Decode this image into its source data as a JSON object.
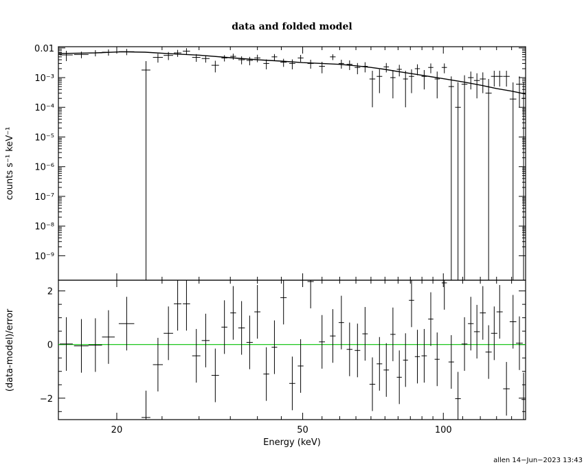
{
  "chart_data": [
    {
      "type": "scatter",
      "title": "data and folded model",
      "ylabel": "counts s⁻¹ keV⁻¹",
      "y_scale": "log",
      "xlim": [
        15,
        150
      ],
      "x_scale": "log",
      "ylim": [
        1.5e-10,
        0.011
      ],
      "y_ticks": [
        "0.01",
        "10⁻³",
        "10⁻⁴",
        "10⁻⁵",
        "10⁻⁶",
        "10⁻⁷",
        "10⁻⁸",
        "10⁻⁹"
      ],
      "y_tick_values": [
        0.01,
        0.001,
        0.0001,
        1e-05,
        1e-06,
        1e-07,
        1e-08,
        1e-09
      ],
      "series": [
        {
          "kind": "data",
          "points": [
            [
              15.6,
              0.0058,
              0.5,
              0.0022
            ],
            [
              16.8,
              0.006,
              0.6,
              0.0015
            ],
            [
              18.0,
              0.0068,
              0.6,
              0.0016
            ],
            [
              19.2,
              0.0072,
              0.6,
              0.0017
            ],
            [
              21.0,
              0.0075,
              0.8,
              0.0018
            ],
            [
              23.1,
              0.0018,
              0.5,
              0.0018
            ],
            [
              24.5,
              0.0048,
              0.6,
              0.0016
            ],
            [
              25.8,
              0.0056,
              0.6,
              0.0017
            ],
            [
              27.0,
              0.0068,
              0.5,
              0.0018
            ],
            [
              28.2,
              0.0078,
              0.5,
              0.002
            ],
            [
              29.6,
              0.0048,
              0.6,
              0.0014
            ],
            [
              31.0,
              0.0044,
              0.6,
              0.0012
            ],
            [
              32.5,
              0.0026,
              0.6,
              0.0011
            ],
            [
              34.0,
              0.0046,
              0.5,
              0.0011
            ],
            [
              35.5,
              0.0052,
              0.5,
              0.0012
            ],
            [
              37.0,
              0.004,
              0.6,
              0.0012
            ],
            [
              38.5,
              0.0038,
              0.6,
              0.0012
            ],
            [
              40.0,
              0.0046,
              0.6,
              0.0013
            ],
            [
              41.8,
              0.003,
              0.6,
              0.0011
            ],
            [
              43.5,
              0.005,
              0.6,
              0.0012
            ],
            [
              45.5,
              0.0033,
              0.7,
              0.001
            ],
            [
              47.5,
              0.003,
              0.7,
              0.0011
            ],
            [
              49.5,
              0.0046,
              0.7,
              0.0012
            ],
            [
              52.0,
              0.003,
              0.8,
              0.001
            ],
            [
              55.0,
              0.0024,
              0.8,
              0.001
            ],
            [
              58.0,
              0.005,
              0.8,
              0.0011
            ],
            [
              60.5,
              0.003,
              0.8,
              0.001
            ],
            [
              63.0,
              0.0028,
              0.9,
              0.001
            ],
            [
              65.5,
              0.0022,
              0.9,
              0.0009
            ],
            [
              68.0,
              0.0024,
              0.9,
              0.0009
            ],
            [
              70.5,
              0.0009,
              1.0,
              0.0008
            ],
            [
              73.0,
              0.0011,
              1.0,
              0.0008
            ],
            [
              75.5,
              0.0023,
              1.0,
              0.0008
            ],
            [
              78.0,
              0.001,
              1.0,
              0.0008
            ],
            [
              80.5,
              0.0019,
              1.0,
              0.0008
            ],
            [
              83.0,
              0.0009,
              1.0,
              0.0008
            ],
            [
              85.5,
              0.0011,
              1.1,
              0.0008
            ],
            [
              88.0,
              0.002,
              1.1,
              0.0008
            ],
            [
              91.0,
              0.0011,
              1.2,
              0.0007
            ],
            [
              94.0,
              0.0022,
              1.2,
              0.0008
            ],
            [
              97.0,
              0.0009,
              1.2,
              0.0007
            ],
            [
              100.5,
              0.0022,
              1.3,
              0.0008
            ],
            [
              104.0,
              0.0005,
              1.4,
              0.0006
            ],
            [
              107.5,
              0.0001,
              1.5,
              0.0006
            ],
            [
              111.0,
              0.0006,
              1.6,
              0.0006
            ],
            [
              114.5,
              0.001,
              1.6,
              0.0006
            ],
            [
              118.0,
              0.0008,
              1.7,
              0.0006
            ],
            [
              121.5,
              0.0009,
              1.8,
              0.0006
            ],
            [
              125.0,
              0.0003,
              1.9,
              0.0006
            ],
            [
              128.5,
              0.0011,
              2.0,
              0.0006
            ],
            [
              132.0,
              0.0011,
              2.0,
              0.0006
            ],
            [
              136.5,
              0.0011,
              2.2,
              0.0006
            ],
            [
              141.0,
              0.00019,
              2.3,
              0.0005
            ],
            [
              145.5,
              0.0006,
              2.4,
              0.0005
            ],
            [
              148.5,
              0.0002,
              1.5,
              0.0005
            ]
          ]
        },
        {
          "kind": "model",
          "points": [
            [
              15.0,
              0.0065
            ],
            [
              18.0,
              0.0068
            ],
            [
              20.5,
              0.0074
            ],
            [
              23.0,
              0.0072
            ],
            [
              26.0,
              0.0064
            ],
            [
              30.0,
              0.0057
            ],
            [
              35.0,
              0.0047
            ],
            [
              40.0,
              0.004
            ],
            [
              45.0,
              0.0036
            ],
            [
              50.0,
              0.0032
            ],
            [
              55.0,
              0.003
            ],
            [
              60.0,
              0.0028
            ],
            [
              65.0,
              0.0025
            ],
            [
              70.0,
              0.0022
            ],
            [
              75.0,
              0.0019
            ],
            [
              80.0,
              0.0016
            ],
            [
              90.0,
              0.0012
            ],
            [
              100.0,
              0.00092
            ],
            [
              110.0,
              0.00072
            ],
            [
              120.0,
              0.00056
            ],
            [
              130.0,
              0.00043
            ],
            [
              140.0,
              0.00035
            ],
            [
              150.0,
              0.00028
            ]
          ]
        }
      ]
    },
    {
      "type": "scatter",
      "ylabel": "(data-model)/error",
      "xlabel": "Energy (keV)",
      "xlim": [
        15,
        150
      ],
      "ylim": [
        -2.8,
        2.4
      ],
      "x_ticks": [
        "20",
        "50",
        "100"
      ],
      "x_tick_values": [
        20,
        50,
        100
      ],
      "y_ticks": [
        "2",
        "0",
        "−2"
      ],
      "y_tick_values": [
        2,
        0,
        -2
      ],
      "zero_line_color": "#00c000",
      "series": [
        {
          "kind": "residuals",
          "points": [
            [
              15.6,
              0.02,
              0.5,
              1.0
            ],
            [
              16.8,
              -0.05,
              0.6,
              1.0
            ],
            [
              18.0,
              -0.02,
              0.6,
              1.0
            ],
            [
              19.2,
              0.28,
              0.6,
              1.0
            ],
            [
              21.0,
              0.78,
              0.8,
              1.0
            ],
            [
              23.1,
              -2.72,
              0.5,
              1.0
            ],
            [
              24.5,
              -0.75,
              0.6,
              1.0
            ],
            [
              25.8,
              0.42,
              0.6,
              1.0
            ],
            [
              27.0,
              1.52,
              0.5,
              1.0
            ],
            [
              28.2,
              1.52,
              0.5,
              1.0
            ],
            [
              29.6,
              -0.42,
              0.6,
              1.0
            ],
            [
              31.0,
              0.15,
              0.6,
              1.0
            ],
            [
              32.5,
              -1.15,
              0.6,
              1.0
            ],
            [
              34.0,
              0.65,
              0.5,
              1.0
            ],
            [
              35.5,
              1.18,
              0.5,
              1.0
            ],
            [
              37.0,
              0.62,
              0.6,
              1.0
            ],
            [
              38.5,
              0.08,
              0.6,
              1.0
            ],
            [
              40.0,
              1.22,
              0.6,
              1.0
            ],
            [
              41.8,
              -1.1,
              0.6,
              1.0
            ],
            [
              43.5,
              -0.1,
              0.6,
              1.0
            ],
            [
              45.5,
              1.75,
              0.7,
              1.0
            ],
            [
              47.5,
              -1.45,
              0.7,
              1.0
            ],
            [
              49.5,
              -0.8,
              0.7,
              1.0
            ],
            [
              52.0,
              2.35,
              0.8,
              1.0
            ],
            [
              55.0,
              0.1,
              0.8,
              1.0
            ],
            [
              58.0,
              0.32,
              0.8,
              1.0
            ],
            [
              60.5,
              0.82,
              0.8,
              1.0
            ],
            [
              63.0,
              -0.18,
              0.9,
              1.0
            ],
            [
              65.5,
              -0.22,
              0.9,
              1.0
            ],
            [
              68.0,
              0.4,
              0.9,
              1.0
            ],
            [
              70.5,
              -1.48,
              1.0,
              1.0
            ],
            [
              73.0,
              -0.72,
              1.0,
              1.0
            ],
            [
              75.5,
              -0.95,
              1.0,
              1.0
            ],
            [
              78.0,
              0.38,
              1.0,
              1.0
            ],
            [
              80.5,
              -1.22,
              1.0,
              1.0
            ],
            [
              83.0,
              -0.58,
              1.0,
              1.0
            ],
            [
              85.5,
              1.65,
              1.1,
              1.0
            ],
            [
              88.0,
              -0.45,
              1.1,
              1.0
            ],
            [
              91.0,
              -0.42,
              1.2,
              1.0
            ],
            [
              94.0,
              0.95,
              1.2,
              1.0
            ],
            [
              97.0,
              -0.55,
              1.2,
              1.0
            ],
            [
              100.5,
              2.3,
              1.3,
              1.0
            ],
            [
              104.0,
              -0.65,
              1.4,
              1.0
            ],
            [
              107.5,
              -2.02,
              1.5,
              1.0
            ],
            [
              111.0,
              0.02,
              1.6,
              1.0
            ],
            [
              114.5,
              0.78,
              1.6,
              1.0
            ],
            [
              118.0,
              0.48,
              1.7,
              1.0
            ],
            [
              121.5,
              1.18,
              1.8,
              1.0
            ],
            [
              125.0,
              -0.28,
              1.9,
              1.0
            ],
            [
              128.5,
              0.42,
              2.0,
              1.0
            ],
            [
              132.0,
              1.22,
              2.0,
              1.0
            ],
            [
              136.5,
              -1.65,
              2.2,
              1.0
            ],
            [
              141.0,
              0.85,
              2.3,
              1.0
            ],
            [
              145.5,
              0.05,
              2.4,
              1.0
            ],
            [
              148.5,
              -2.05,
              1.5,
              1.0
            ]
          ]
        }
      ]
    }
  ],
  "footer": "allen 14−Jun−2023 13:43"
}
